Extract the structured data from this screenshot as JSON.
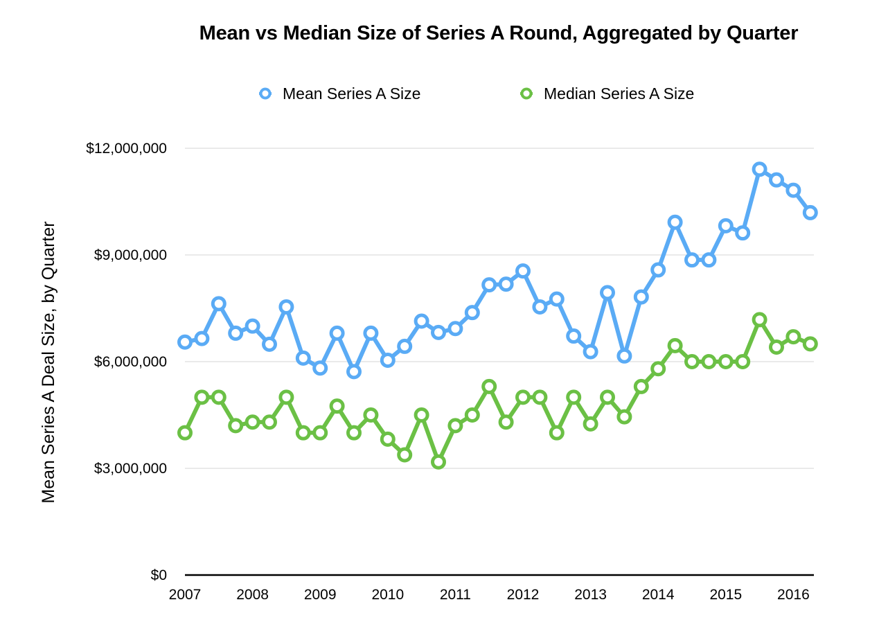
{
  "chart_data": {
    "type": "line",
    "title": "Mean vs Median Size of Series A Round, Aggregated by Quarter",
    "xlabel": "",
    "ylabel": "Mean Series A Deal Size, by Quarter",
    "ylim": [
      0,
      12000000
    ],
    "y_ticks": [
      0,
      3000000,
      6000000,
      9000000,
      12000000
    ],
    "y_tick_labels": [
      "$0",
      "$3,000,000",
      "$6,000,000",
      "$9,000,000",
      "$12,000,000"
    ],
    "x_tick_labels": [
      "2007",
      "2008",
      "2009",
      "2010",
      "2011",
      "2012",
      "2013",
      "2014",
      "2015",
      "2016"
    ],
    "quarters_per_year": 4,
    "grid": true,
    "legend_position": "top",
    "series": [
      {
        "name": "Mean Series A Size",
        "color": "#5aabf5",
        "values": [
          6550000,
          6650000,
          7630000,
          6800000,
          7000000,
          6490000,
          7540000,
          6100000,
          5820000,
          6800000,
          5720000,
          6800000,
          6040000,
          6430000,
          7140000,
          6820000,
          6930000,
          7380000,
          8160000,
          8180000,
          8550000,
          7540000,
          7760000,
          6720000,
          6280000,
          7940000,
          6160000,
          7820000,
          8580000,
          9920000,
          8860000,
          8860000,
          9820000,
          9620000,
          11410000,
          11110000,
          10820000,
          10190000
        ]
      },
      {
        "name": "Median Series A Size",
        "color": "#6bc045",
        "values": [
          4000000,
          5000000,
          5000000,
          4200000,
          4300000,
          4300000,
          5000000,
          4000000,
          4000000,
          4750000,
          4000000,
          4500000,
          3820000,
          3380000,
          4500000,
          3180000,
          4200000,
          4500000,
          5300000,
          4300000,
          5000000,
          5000000,
          4000000,
          5000000,
          4250000,
          5000000,
          4450000,
          5300000,
          5800000,
          6450000,
          6000000,
          6000000,
          6000000,
          6000000,
          7180000,
          6410000,
          6700000,
          6500000
        ]
      }
    ]
  }
}
